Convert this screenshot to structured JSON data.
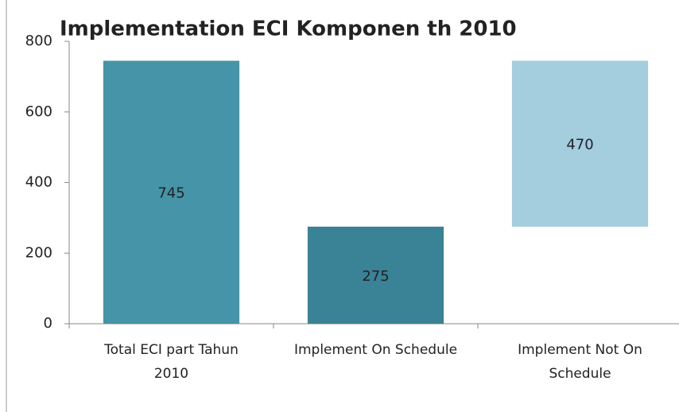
{
  "chart_data": {
    "type": "waterfall",
    "title": "Implementation ECI Komponen th 2010",
    "categories": [
      "Total ECI part Tahun 2010",
      "Implement On Schedule",
      "Implement Not On Schedule"
    ],
    "values": [
      745,
      275,
      470
    ],
    "colors": [
      "#3b8ea3",
      "#2f7b8f",
      "#9fcadb"
    ],
    "ylim": [
      0,
      800
    ],
    "yticks": [
      0,
      200,
      400,
      600,
      800
    ]
  }
}
